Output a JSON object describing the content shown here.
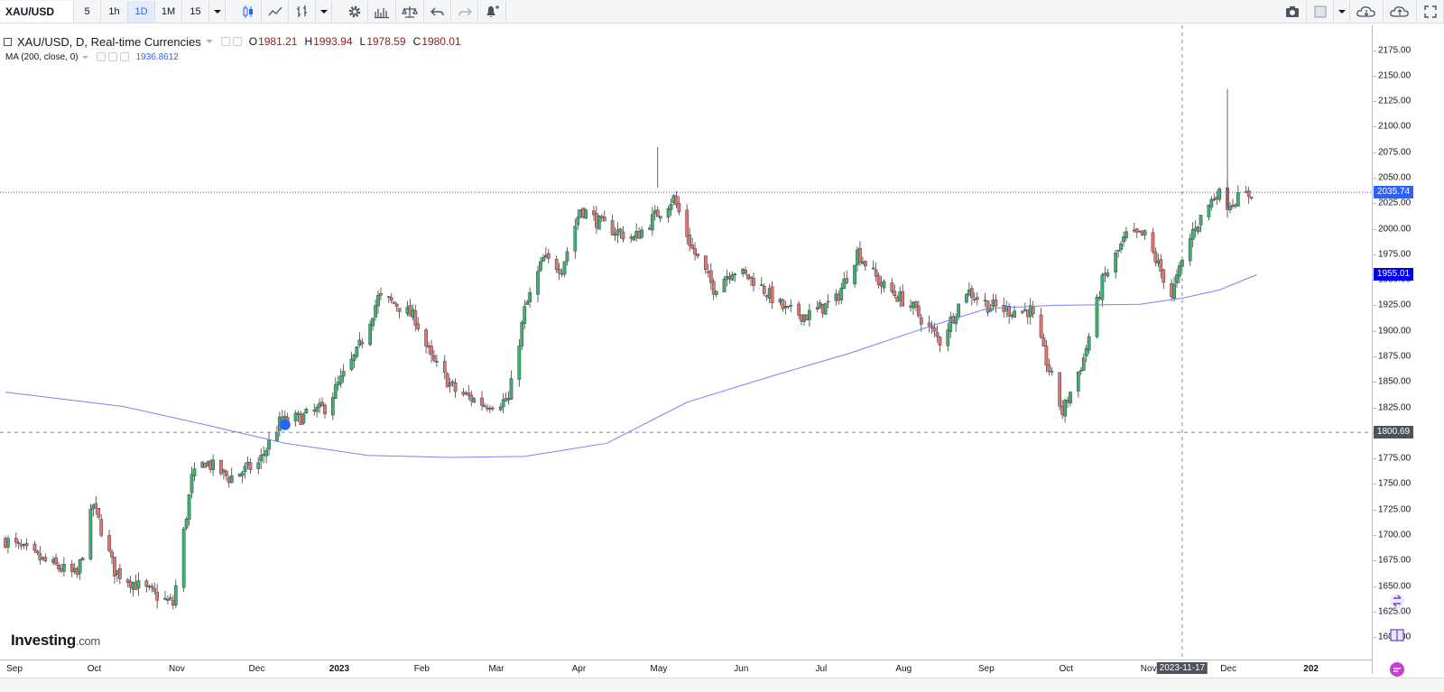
{
  "toolbar": {
    "symbol": "XAU/USD",
    "intervals": [
      "5",
      "1h",
      "1D",
      "1M",
      "15"
    ],
    "active_interval": "1D"
  },
  "legend": {
    "title": "XAU/USD, D, Real-time Currencies",
    "open_label": "O",
    "open": "1981.21",
    "high_label": "H",
    "high": "1993.94",
    "low_label": "L",
    "low": "1978.59",
    "close_label": "C",
    "close": "1980.01",
    "ma_name": "MA (200, close, 0)",
    "ma_value": "1936.8612"
  },
  "price_axis": {
    "ticks": [
      "2175.00",
      "2150.00",
      "2125.00",
      "2100.00",
      "2075.00",
      "2050.00",
      "2025.00",
      "2000.00",
      "1975.00",
      "1950.00",
      "1925.00",
      "1900.00",
      "1875.00",
      "1850.00",
      "1825.00",
      "1800.00",
      "1775.00",
      "1750.00",
      "1725.00",
      "1700.00",
      "1675.00",
      "1650.00",
      "1625.00",
      "1600.00"
    ],
    "last_price_label": "2035.74",
    "ma_label": "1955.01",
    "crosshair_price_label": "1800.69"
  },
  "time_axis": {
    "labels": [
      {
        "text": "Sep",
        "bold": false
      },
      {
        "text": "Oct",
        "bold": false
      },
      {
        "text": "Nov",
        "bold": false
      },
      {
        "text": "Dec",
        "bold": false
      },
      {
        "text": "2023",
        "bold": true
      },
      {
        "text": "Feb",
        "bold": false
      },
      {
        "text": "Mar",
        "bold": false
      },
      {
        "text": "Apr",
        "bold": false
      },
      {
        "text": "May",
        "bold": false
      },
      {
        "text": "Jun",
        "bold": false
      },
      {
        "text": "Jul",
        "bold": false
      },
      {
        "text": "Aug",
        "bold": false
      },
      {
        "text": "Sep",
        "bold": false
      },
      {
        "text": "Oct",
        "bold": false
      },
      {
        "text": "Nov",
        "bold": false
      },
      {
        "text": "Dec",
        "bold": false
      },
      {
        "text": "202",
        "bold": true
      }
    ],
    "crosshair_date": "2023-11-17"
  },
  "watermark": {
    "brand": "Investing",
    "suffix": ".com"
  },
  "colors": {
    "up": "#26a69a",
    "up_fill": "#3cb371",
    "down": "#ef5350",
    "down_fill": "#e57373",
    "ma_line": "#7b83f0",
    "price_line": "#2962ff",
    "badge": "#0000ee",
    "crosshair": "#888888",
    "pane_bg": "#ffffff"
  },
  "chart_data": {
    "type": "candlestick",
    "title": "XAU/USD, D, Real-time Currencies",
    "ylim": [
      1600,
      2185
    ],
    "x_range": [
      "2022-09-01",
      "2023-12-31"
    ],
    "grid": false,
    "series": [
      {
        "name": "XAU/USD",
        "points": [
          [
            "2022-09-01",
            1712,
            1695
          ],
          [
            "2022-09-15",
            1660,
            1675
          ],
          [
            "2022-09-28",
            1630,
            1660
          ],
          [
            "2022-10-04",
            1710,
            1730
          ],
          [
            "2022-10-12",
            1670,
            1665
          ],
          [
            "2022-10-21",
            1625,
            1650
          ],
          [
            "2022-11-03",
            1630,
            1632
          ],
          [
            "2022-11-10",
            1705,
            1755
          ],
          [
            "2022-11-15",
            1778,
            1772
          ],
          [
            "2022-11-24",
            1752,
            1756
          ],
          [
            "2022-12-05",
            1800,
            1770
          ],
          [
            "2022-12-13",
            1780,
            1810
          ],
          [
            "2022-12-21",
            1810,
            1815
          ],
          [
            "2022-12-30",
            1812,
            1825
          ],
          [
            "2023-01-11",
            1876,
            1878
          ],
          [
            "2023-01-19",
            1905,
            1932
          ],
          [
            "2023-01-26",
            1930,
            1926
          ],
          [
            "2023-02-02",
            1952,
            1912
          ],
          [
            "2023-02-08",
            1870,
            1872
          ],
          [
            "2023-02-17",
            1835,
            1841
          ],
          [
            "2023-02-28",
            1822,
            1828
          ],
          [
            "2023-03-09",
            1815,
            1832
          ],
          [
            "2023-03-15",
            1904,
            1920
          ],
          [
            "2023-03-22",
            1944,
            1970
          ],
          [
            "2023-03-29",
            1965,
            1962
          ],
          [
            "2023-04-05",
            2022,
            2020
          ],
          [
            "2023-04-13",
            2040,
            2004
          ],
          [
            "2023-04-25",
            1990,
            1990
          ],
          [
            "2023-05-04",
            2049,
            2015
          ],
          [
            "2023-05-10",
            2020,
            2030
          ],
          [
            "2023-05-17",
            1985,
            1980
          ],
          [
            "2023-05-25",
            1940,
            1942
          ],
          [
            "2023-06-01",
            1958,
            1960
          ],
          [
            "2023-06-09",
            1960,
            1950
          ],
          [
            "2023-06-21",
            1930,
            1920
          ],
          [
            "2023-06-29",
            1910,
            1915
          ],
          [
            "2023-07-10",
            1925,
            1930
          ],
          [
            "2023-07-18",
            1978,
            1977
          ],
          [
            "2023-07-27",
            1958,
            1945
          ],
          [
            "2023-08-07",
            1935,
            1925
          ],
          [
            "2023-08-18",
            1890,
            1890
          ],
          [
            "2023-08-28",
            1918,
            1940
          ],
          [
            "2023-09-05",
            1925,
            1925
          ],
          [
            "2023-09-13",
            1910,
            1920
          ],
          [
            "2023-09-21",
            1925,
            1920
          ],
          [
            "2023-09-27",
            1875,
            1870
          ],
          [
            "2023-10-03",
            1822,
            1820
          ],
          [
            "2023-10-11",
            1872,
            1873
          ],
          [
            "2023-10-18",
            1955,
            1948
          ],
          [
            "2023-10-27",
            1998,
            1993
          ],
          [
            "2023-11-03",
            1990,
            1993
          ],
          [
            "2023-11-13",
            1938,
            1935
          ],
          [
            "2023-11-21",
            1995,
            1998
          ],
          [
            "2023-11-30",
            2040,
            2036
          ],
          [
            "2023-12-04",
            2072,
            2025
          ],
          [
            "2023-12-13",
            1980,
            2035
          ]
        ]
      },
      {
        "name": "MA (200, close, 0)",
        "points": [
          [
            "2022-09-01",
            1840
          ],
          [
            "2022-10-15",
            1826
          ],
          [
            "2022-11-15",
            1808
          ],
          [
            "2022-12-15",
            1790
          ],
          [
            "2023-01-15",
            1778
          ],
          [
            "2023-02-15",
            1776
          ],
          [
            "2023-03-15",
            1777
          ],
          [
            "2023-04-15",
            1790
          ],
          [
            "2023-05-15",
            1830
          ],
          [
            "2023-06-15",
            1855
          ],
          [
            "2023-07-15",
            1878
          ],
          [
            "2023-08-15",
            1905
          ],
          [
            "2023-09-05",
            1922
          ],
          [
            "2023-10-01",
            1925
          ],
          [
            "2023-11-01",
            1926
          ],
          [
            "2023-11-17",
            1932
          ],
          [
            "2023-12-01",
            1940
          ],
          [
            "2023-12-15",
            1955
          ]
        ]
      }
    ]
  }
}
